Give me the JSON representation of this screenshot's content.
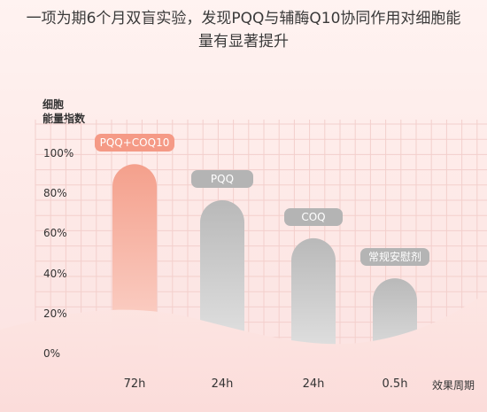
{
  "title_line1": "一项为期6个月双盲实验，发现PQQ与辅酶Q10协同作用对细胞能",
  "title_line2": "量有显著提升",
  "chart_data": {
    "type": "bar",
    "ylabel_line1": "细胞",
    "ylabel_line2": "能量指数",
    "xlabel": "效果周期",
    "ylim": [
      0,
      100
    ],
    "yticks": [
      "0%",
      "20%",
      "40%",
      "60%",
      "80%",
      "100%"
    ],
    "ytick_values": [
      0,
      20,
      40,
      60,
      80,
      100
    ],
    "grid": true,
    "categories": [
      "72h",
      "24h",
      "24h",
      "0.5h"
    ],
    "series": [
      {
        "name": "",
        "values": [
          95,
          77,
          58,
          38
        ],
        "labels": [
          "PQQ+COQ10",
          "PQQ",
          "COQ",
          "常规安慰剂"
        ]
      }
    ],
    "colors": {
      "highlight_top": "#f4a08c",
      "highlight_bottom": "#fde1db",
      "gray_top": "#b9b9b9",
      "gray_bottom": "#ececec",
      "badge_highlight": "#f59a86",
      "badge_gray": "#b4b4b4",
      "grid": "#f3cfcc"
    }
  }
}
